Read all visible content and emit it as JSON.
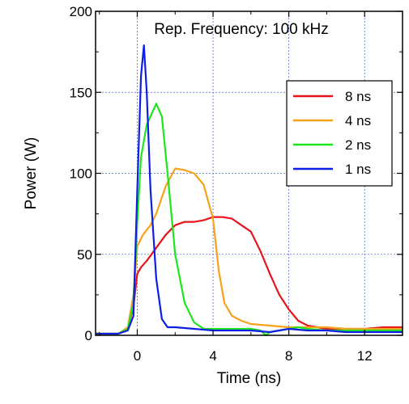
{
  "chart_data": {
    "type": "line",
    "annotation": "Rep. Frequency: 100 kHz",
    "xlabel": "Time (ns)",
    "ylabel": "Power (W)",
    "xlim": [
      -2.2,
      14
    ],
    "ylim": [
      0,
      200
    ],
    "xticks": [
      0,
      4,
      8,
      12
    ],
    "yticks": [
      0,
      50,
      100,
      150,
      200
    ],
    "grid": true,
    "legend_position": "top-right",
    "series": [
      {
        "name": "8 ns",
        "color": "#e8141b",
        "x": [
          -2.2,
          -1.0,
          -0.5,
          -0.2,
          0.0,
          0.2,
          0.5,
          1.0,
          1.5,
          2.0,
          2.5,
          3.0,
          3.5,
          4.0,
          4.5,
          5.0,
          5.5,
          6.0,
          6.5,
          7.0,
          7.5,
          8.0,
          8.5,
          9.0,
          9.5,
          10.0,
          11.0,
          12.0,
          13.0,
          14.0
        ],
        "y": [
          1,
          1,
          4,
          18,
          38,
          42,
          46,
          54,
          62,
          68,
          70,
          70,
          71,
          73,
          73,
          72,
          68,
          64,
          52,
          38,
          25,
          16,
          9,
          6,
          5,
          4,
          4,
          4,
          5,
          5
        ]
      },
      {
        "name": "4 ns",
        "color": "#f7a21c",
        "x": [
          -2.2,
          -1.0,
          -0.5,
          -0.2,
          0.0,
          0.3,
          0.7,
          1.0,
          1.5,
          2.0,
          2.5,
          3.0,
          3.5,
          4.0,
          4.3,
          4.6,
          5.0,
          5.5,
          6.0,
          7.0,
          8.0,
          9.0,
          10.0,
          11.0,
          12.0,
          13.0,
          14.0
        ],
        "y": [
          1,
          1,
          5,
          25,
          55,
          62,
          68,
          75,
          92,
          103,
          102,
          100,
          93,
          72,
          40,
          20,
          12,
          9,
          7,
          6,
          5,
          5,
          5,
          4,
          4,
          4,
          4
        ]
      },
      {
        "name": "2 ns",
        "color": "#1fe51f",
        "x": [
          -2.2,
          -1.0,
          -0.5,
          -0.2,
          0.0,
          0.2,
          0.5,
          1.0,
          1.3,
          1.6,
          2.0,
          2.5,
          3.0,
          3.5,
          4.0,
          5.0,
          6.0,
          6.5,
          6.8,
          7.0,
          7.5,
          8.0,
          8.5,
          9.0,
          10.0,
          11.0,
          12.0,
          13.0,
          14.0
        ],
        "y": [
          1,
          1,
          4,
          20,
          70,
          110,
          130,
          143,
          135,
          100,
          50,
          20,
          8,
          4,
          4,
          4,
          4,
          3,
          0,
          2,
          3,
          4,
          5,
          4,
          3,
          3,
          3,
          3,
          3
        ]
      },
      {
        "name": "1 ns",
        "color": "#0d1ee5",
        "x": [
          -2.2,
          -1.0,
          -0.5,
          -0.2,
          0.0,
          0.2,
          0.35,
          0.5,
          0.7,
          1.0,
          1.3,
          1.6,
          2.0,
          3.0,
          4.0,
          5.0,
          6.0,
          7.0,
          8.0,
          9.0,
          10.0,
          11.0,
          12.0,
          13.0,
          14.0
        ],
        "y": [
          1,
          1,
          3,
          12,
          90,
          160,
          179,
          150,
          90,
          35,
          10,
          5,
          5,
          4,
          3,
          3,
          3,
          2,
          4,
          3,
          3,
          2,
          2,
          2,
          2
        ]
      }
    ]
  }
}
